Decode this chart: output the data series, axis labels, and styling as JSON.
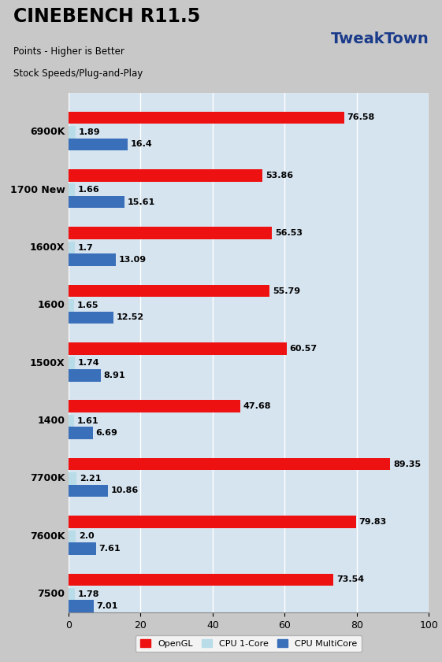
{
  "title": "CINEBENCH R11.5",
  "subtitle1": "Points - Higher is Better",
  "subtitle2": "Stock Speeds/Plug-and-Play",
  "categories": [
    "6900K",
    "1700 New",
    "1600X",
    "1600",
    "1500X",
    "1400",
    "7700K",
    "7600K",
    "7500"
  ],
  "opengl": [
    76.58,
    53.86,
    56.53,
    55.79,
    60.57,
    47.68,
    89.35,
    79.83,
    73.54
  ],
  "cpu1core": [
    1.89,
    1.66,
    1.7,
    1.65,
    1.74,
    1.61,
    2.21,
    2.0,
    1.78
  ],
  "cpumulti": [
    16.4,
    15.61,
    13.09,
    12.52,
    8.91,
    6.69,
    10.86,
    7.61,
    7.01
  ],
  "opengl_color": "#ee1111",
  "cpu1core_color": "#b8dce8",
  "cpumulti_color": "#3a6fba",
  "bg_color": "#d6e4f0",
  "header_bg": "#c8c8c8",
  "outer_bg": "#c8c8c8",
  "xlim": [
    0,
    100
  ],
  "bar_height": 0.22,
  "value_fontsize": 8,
  "label_fontsize": 9,
  "tick_fontsize": 9,
  "legend_fontsize": 8
}
